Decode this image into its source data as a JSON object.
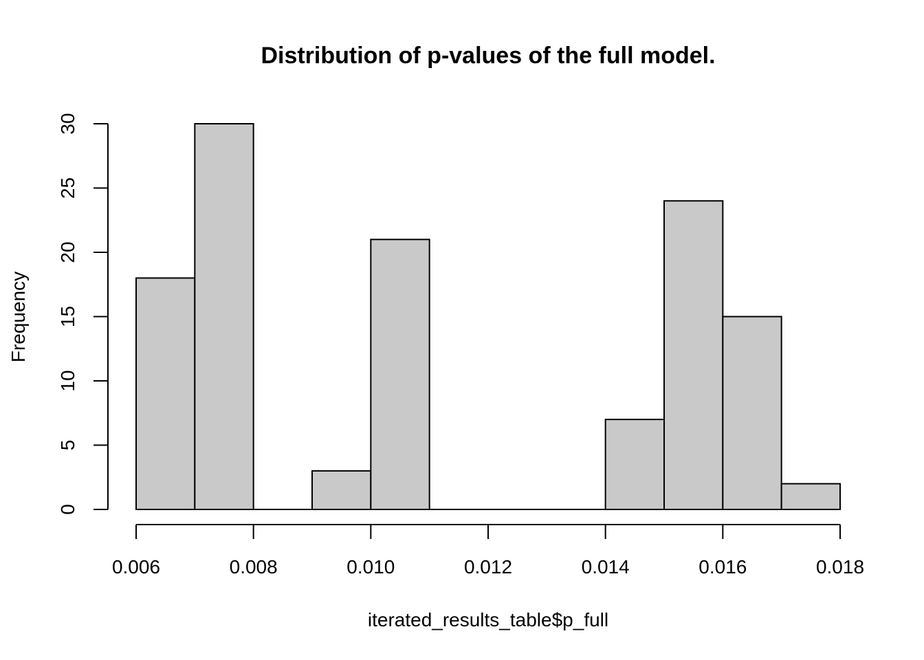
{
  "chart_data": {
    "type": "bar",
    "subtype": "histogram",
    "title": "Distribution of p-values of the full model.",
    "xlabel": "iterated_results_table$p_full",
    "ylabel": "Frequency",
    "bins": [
      {
        "start": 0.006,
        "end": 0.007,
        "count": 18
      },
      {
        "start": 0.007,
        "end": 0.008,
        "count": 30
      },
      {
        "start": 0.008,
        "end": 0.009,
        "count": 0
      },
      {
        "start": 0.009,
        "end": 0.01,
        "count": 3
      },
      {
        "start": 0.01,
        "end": 0.011,
        "count": 21
      },
      {
        "start": 0.011,
        "end": 0.012,
        "count": 0
      },
      {
        "start": 0.012,
        "end": 0.013,
        "count": 0
      },
      {
        "start": 0.013,
        "end": 0.014,
        "count": 0
      },
      {
        "start": 0.014,
        "end": 0.015,
        "count": 7
      },
      {
        "start": 0.015,
        "end": 0.016,
        "count": 24
      },
      {
        "start": 0.016,
        "end": 0.017,
        "count": 15
      },
      {
        "start": 0.017,
        "end": 0.018,
        "count": 2
      }
    ],
    "xlim": [
      0.006,
      0.018
    ],
    "ylim": [
      0,
      30
    ],
    "x_ticks": [
      {
        "value": 0.006,
        "label": "0.006"
      },
      {
        "value": 0.008,
        "label": "0.008"
      },
      {
        "value": 0.01,
        "label": "0.010"
      },
      {
        "value": 0.012,
        "label": "0.012"
      },
      {
        "value": 0.014,
        "label": "0.014"
      },
      {
        "value": 0.016,
        "label": "0.016"
      },
      {
        "value": 0.018,
        "label": "0.018"
      }
    ],
    "y_ticks": [
      {
        "value": 0,
        "label": "0"
      },
      {
        "value": 5,
        "label": "5"
      },
      {
        "value": 10,
        "label": "10"
      },
      {
        "value": 15,
        "label": "15"
      },
      {
        "value": 20,
        "label": "20"
      },
      {
        "value": 25,
        "label": "25"
      },
      {
        "value": 30,
        "label": "30"
      }
    ],
    "bar_fill": "#c9c9c9",
    "bar_stroke": "#000000",
    "grid": false
  }
}
